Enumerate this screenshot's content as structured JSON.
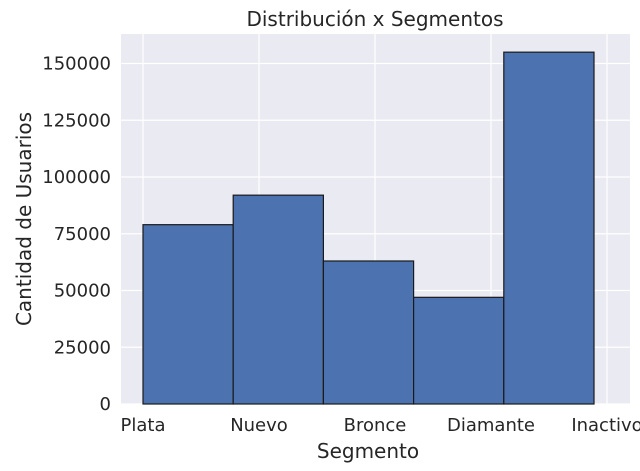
{
  "chart_data": {
    "type": "bar",
    "title": "Distribución x Segmentos",
    "xlabel": "Segmento",
    "ylabel": "Cantidad de Usuarios",
    "categories": [
      "Plata",
      "Nuevo",
      "Bronce",
      "Diamante",
      "Inactivo"
    ],
    "values": [
      79000,
      92000,
      63000,
      47000,
      155000
    ],
    "ylim": [
      0,
      163000
    ],
    "yticks": [
      0,
      25000,
      50000,
      75000,
      100000,
      125000,
      150000
    ],
    "grid": true,
    "colors": {
      "bar": "#4c72b0",
      "edge": "#1a1a1a",
      "background": "#eaeaf2",
      "grid": "#ffffff"
    }
  }
}
